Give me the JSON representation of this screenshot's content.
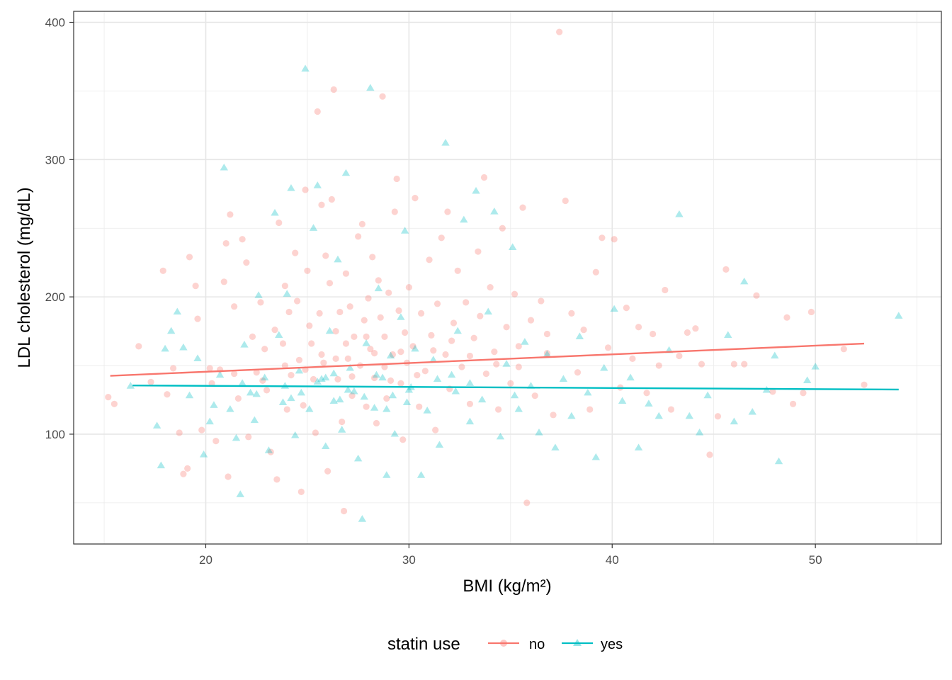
{
  "chart_data": {
    "type": "scatter",
    "xlabel": "BMI (kg/m²)",
    "ylabel": "LDL cholesterol (mg/dL)",
    "xlim": [
      13.5,
      56.2
    ],
    "ylim": [
      20,
      408
    ],
    "x_ticks": [
      20,
      30,
      40,
      50
    ],
    "y_ticks": [
      100,
      200,
      300,
      400
    ],
    "x_tick_labels": [
      "20",
      "30",
      "40",
      "50"
    ],
    "y_tick_labels": [
      "100",
      "200",
      "300",
      "400"
    ],
    "grid": true,
    "legend": {
      "title": "statin use",
      "position": "bottom",
      "entries": [
        "no",
        "yes"
      ]
    },
    "series": [
      {
        "name": "no",
        "color": "#F8766D",
        "marker": "circle",
        "trend_line": {
          "x": [
            15.3,
            52.4
          ],
          "y": [
            142.5,
            166.0
          ]
        },
        "points": [
          [
            15.2,
            127
          ],
          [
            15.5,
            122
          ],
          [
            16.7,
            164
          ],
          [
            17.3,
            138
          ],
          [
            17.9,
            219
          ],
          [
            18.1,
            129
          ],
          [
            18.4,
            148
          ],
          [
            18.7,
            101
          ],
          [
            18.9,
            71
          ],
          [
            19.1,
            75
          ],
          [
            19.2,
            229
          ],
          [
            19.5,
            208
          ],
          [
            19.6,
            184
          ],
          [
            19.8,
            103
          ],
          [
            20.2,
            148
          ],
          [
            20.3,
            137
          ],
          [
            20.5,
            95
          ],
          [
            20.7,
            147
          ],
          [
            20.9,
            211
          ],
          [
            21.0,
            239
          ],
          [
            21.1,
            69
          ],
          [
            21.2,
            260
          ],
          [
            21.4,
            193
          ],
          [
            21.6,
            126
          ],
          [
            21.8,
            242
          ],
          [
            22.0,
            225
          ],
          [
            22.1,
            98
          ],
          [
            22.3,
            171
          ],
          [
            22.5,
            145
          ],
          [
            22.7,
            196
          ],
          [
            22.9,
            162
          ],
          [
            23.0,
            132
          ],
          [
            23.2,
            87
          ],
          [
            23.4,
            176
          ],
          [
            23.5,
            67
          ],
          [
            23.6,
            254
          ],
          [
            23.8,
            166
          ],
          [
            23.9,
            208
          ],
          [
            24.0,
            118
          ],
          [
            24.1,
            189
          ],
          [
            24.2,
            143
          ],
          [
            24.4,
            232
          ],
          [
            24.5,
            197
          ],
          [
            24.6,
            154
          ],
          [
            24.7,
            58
          ],
          [
            24.8,
            121
          ],
          [
            24.9,
            278
          ],
          [
            25.0,
            219
          ],
          [
            25.1,
            179
          ],
          [
            25.2,
            166
          ],
          [
            25.3,
            140
          ],
          [
            25.4,
            101
          ],
          [
            25.5,
            335
          ],
          [
            25.6,
            188
          ],
          [
            25.7,
            267
          ],
          [
            25.8,
            152
          ],
          [
            25.9,
            230
          ],
          [
            26.0,
            73
          ],
          [
            26.1,
            210
          ],
          [
            26.2,
            271
          ],
          [
            26.3,
            351
          ],
          [
            26.4,
            175
          ],
          [
            26.5,
            140
          ],
          [
            26.6,
            189
          ],
          [
            26.7,
            109
          ],
          [
            26.8,
            44
          ],
          [
            26.9,
            217
          ],
          [
            27.0,
            155
          ],
          [
            27.1,
            193
          ],
          [
            27.2,
            128
          ],
          [
            27.3,
            171
          ],
          [
            27.5,
            244
          ],
          [
            27.6,
            150
          ],
          [
            27.7,
            253
          ],
          [
            27.8,
            183
          ],
          [
            27.9,
            120
          ],
          [
            28.0,
            199
          ],
          [
            28.1,
            162
          ],
          [
            28.2,
            229
          ],
          [
            28.3,
            141
          ],
          [
            28.4,
            108
          ],
          [
            28.5,
            212
          ],
          [
            28.6,
            185
          ],
          [
            28.7,
            346
          ],
          [
            28.8,
            171
          ],
          [
            28.9,
            126
          ],
          [
            29.0,
            203
          ],
          [
            29.2,
            158
          ],
          [
            29.3,
            262
          ],
          [
            29.4,
            286
          ],
          [
            29.5,
            190
          ],
          [
            29.6,
            137
          ],
          [
            29.7,
            96
          ],
          [
            29.8,
            174
          ],
          [
            29.9,
            152
          ],
          [
            30.0,
            207
          ],
          [
            30.2,
            164
          ],
          [
            30.3,
            272
          ],
          [
            30.5,
            120
          ],
          [
            30.6,
            188
          ],
          [
            30.8,
            146
          ],
          [
            31.0,
            227
          ],
          [
            31.1,
            172
          ],
          [
            31.3,
            103
          ],
          [
            31.4,
            195
          ],
          [
            31.6,
            243
          ],
          [
            31.8,
            158
          ],
          [
            31.9,
            262
          ],
          [
            32.0,
            133
          ],
          [
            32.2,
            181
          ],
          [
            32.4,
            219
          ],
          [
            32.6,
            149
          ],
          [
            32.8,
            196
          ],
          [
            33.0,
            122
          ],
          [
            33.2,
            170
          ],
          [
            33.4,
            233
          ],
          [
            33.5,
            186
          ],
          [
            33.7,
            287
          ],
          [
            33.8,
            144
          ],
          [
            34.0,
            207
          ],
          [
            34.2,
            160
          ],
          [
            34.4,
            118
          ],
          [
            34.6,
            250
          ],
          [
            34.8,
            178
          ],
          [
            35.0,
            137
          ],
          [
            35.2,
            202
          ],
          [
            35.4,
            149
          ],
          [
            35.6,
            265
          ],
          [
            35.8,
            50
          ],
          [
            36.0,
            183
          ],
          [
            36.2,
            128
          ],
          [
            36.5,
            197
          ],
          [
            36.8,
            159
          ],
          [
            37.1,
            114
          ],
          [
            37.4,
            393
          ],
          [
            37.7,
            270
          ],
          [
            38.0,
            188
          ],
          [
            38.3,
            145
          ],
          [
            38.6,
            176
          ],
          [
            38.9,
            118
          ],
          [
            39.2,
            218
          ],
          [
            39.5,
            243
          ],
          [
            39.8,
            163
          ],
          [
            40.1,
            242
          ],
          [
            40.4,
            134
          ],
          [
            40.7,
            192
          ],
          [
            41.0,
            155
          ],
          [
            41.3,
            178
          ],
          [
            41.7,
            130
          ],
          [
            42.0,
            173
          ],
          [
            42.3,
            150
          ],
          [
            42.6,
            205
          ],
          [
            42.9,
            118
          ],
          [
            43.3,
            157
          ],
          [
            43.7,
            174
          ],
          [
            44.1,
            177
          ],
          [
            44.4,
            151
          ],
          [
            44.8,
            85
          ],
          [
            45.2,
            113
          ],
          [
            45.6,
            220
          ],
          [
            46.0,
            151
          ],
          [
            46.5,
            151
          ],
          [
            47.1,
            201
          ],
          [
            47.9,
            131
          ],
          [
            48.6,
            185
          ],
          [
            48.9,
            122
          ],
          [
            49.4,
            130
          ],
          [
            49.8,
            189
          ],
          [
            51.4,
            162
          ],
          [
            52.4,
            136
          ],
          [
            27.2,
            142
          ],
          [
            29.6,
            160
          ],
          [
            24.9,
            147
          ],
          [
            31.2,
            161
          ],
          [
            26.4,
            155
          ],
          [
            33.0,
            157
          ],
          [
            22.8,
            139
          ],
          [
            28.8,
            149
          ],
          [
            35.4,
            164
          ],
          [
            25.7,
            158
          ],
          [
            30.4,
            143
          ],
          [
            27.9,
            171
          ],
          [
            23.9,
            150
          ],
          [
            32.1,
            168
          ],
          [
            29.1,
            139
          ],
          [
            26.9,
            166
          ],
          [
            34.3,
            151
          ],
          [
            21.4,
            144
          ],
          [
            36.8,
            173
          ],
          [
            28.3,
            159
          ]
        ]
      },
      {
        "name": "yes",
        "color": "#00BFC4",
        "marker": "triangle",
        "trend_line": {
          "x": [
            16.4,
            54.1
          ],
          "y": [
            135.5,
            132.5
          ]
        },
        "points": [
          [
            16.3,
            135
          ],
          [
            17.6,
            106
          ],
          [
            17.8,
            77
          ],
          [
            18.0,
            162
          ],
          [
            18.3,
            175
          ],
          [
            18.6,
            189
          ],
          [
            18.9,
            163
          ],
          [
            19.2,
            128
          ],
          [
            19.6,
            155
          ],
          [
            19.9,
            85
          ],
          [
            20.2,
            109
          ],
          [
            20.4,
            121
          ],
          [
            20.7,
            143
          ],
          [
            20.9,
            294
          ],
          [
            21.2,
            118
          ],
          [
            21.5,
            97
          ],
          [
            21.7,
            56
          ],
          [
            21.9,
            165
          ],
          [
            22.2,
            130
          ],
          [
            22.4,
            110
          ],
          [
            22.6,
            201
          ],
          [
            22.9,
            141
          ],
          [
            23.1,
            88
          ],
          [
            23.4,
            261
          ],
          [
            23.6,
            172
          ],
          [
            23.8,
            123
          ],
          [
            24.0,
            202
          ],
          [
            24.2,
            279
          ],
          [
            24.4,
            99
          ],
          [
            24.6,
            146
          ],
          [
            24.9,
            366
          ],
          [
            25.1,
            118
          ],
          [
            25.3,
            250
          ],
          [
            25.5,
            281
          ],
          [
            25.7,
            140
          ],
          [
            25.9,
            91
          ],
          [
            26.1,
            175
          ],
          [
            26.3,
            124
          ],
          [
            26.5,
            227
          ],
          [
            26.7,
            103
          ],
          [
            26.9,
            290
          ],
          [
            27.1,
            148
          ],
          [
            27.3,
            131
          ],
          [
            27.5,
            82
          ],
          [
            27.7,
            38
          ],
          [
            27.9,
            166
          ],
          [
            28.1,
            352
          ],
          [
            28.3,
            119
          ],
          [
            28.5,
            206
          ],
          [
            28.7,
            141
          ],
          [
            28.9,
            70
          ],
          [
            29.1,
            157
          ],
          [
            29.3,
            100
          ],
          [
            29.6,
            185
          ],
          [
            29.8,
            248
          ],
          [
            30.0,
            132
          ],
          [
            30.3,
            162
          ],
          [
            30.6,
            70
          ],
          [
            30.9,
            117
          ],
          [
            31.2,
            154
          ],
          [
            31.5,
            92
          ],
          [
            31.8,
            312
          ],
          [
            32.1,
            143
          ],
          [
            32.4,
            175
          ],
          [
            32.7,
            256
          ],
          [
            33.0,
            109
          ],
          [
            33.3,
            277
          ],
          [
            33.6,
            125
          ],
          [
            33.9,
            189
          ],
          [
            34.2,
            262
          ],
          [
            34.5,
            98
          ],
          [
            34.8,
            151
          ],
          [
            35.1,
            236
          ],
          [
            35.4,
            118
          ],
          [
            35.7,
            167
          ],
          [
            36.0,
            135
          ],
          [
            36.4,
            101
          ],
          [
            36.8,
            158
          ],
          [
            37.2,
            90
          ],
          [
            37.6,
            140
          ],
          [
            38.0,
            113
          ],
          [
            38.4,
            171
          ],
          [
            38.8,
            130
          ],
          [
            39.2,
            83
          ],
          [
            39.6,
            148
          ],
          [
            40.1,
            191
          ],
          [
            40.5,
            124
          ],
          [
            40.9,
            141
          ],
          [
            41.3,
            90
          ],
          [
            41.8,
            122
          ],
          [
            42.3,
            113
          ],
          [
            42.8,
            161
          ],
          [
            43.3,
            260
          ],
          [
            43.8,
            113
          ],
          [
            44.3,
            101
          ],
          [
            44.7,
            128
          ],
          [
            45.7,
            172
          ],
          [
            46.0,
            109
          ],
          [
            46.5,
            211
          ],
          [
            46.9,
            116
          ],
          [
            47.6,
            132
          ],
          [
            48.0,
            157
          ],
          [
            48.2,
            80
          ],
          [
            49.6,
            139
          ],
          [
            50.0,
            149
          ],
          [
            54.1,
            186
          ],
          [
            27.0,
            132
          ],
          [
            25.5,
            138
          ],
          [
            29.2,
            128
          ],
          [
            23.9,
            135
          ],
          [
            31.4,
            140
          ],
          [
            26.6,
            125
          ],
          [
            28.4,
            143
          ],
          [
            24.7,
            130
          ],
          [
            30.1,
            134
          ],
          [
            22.5,
            129
          ],
          [
            33.0,
            137
          ],
          [
            27.8,
            127
          ],
          [
            25.9,
            141
          ],
          [
            29.9,
            123
          ],
          [
            32.3,
            131
          ],
          [
            24.2,
            126
          ],
          [
            26.3,
            144
          ],
          [
            28.9,
            118
          ],
          [
            35.2,
            128
          ],
          [
            21.8,
            137
          ]
        ]
      }
    ]
  }
}
